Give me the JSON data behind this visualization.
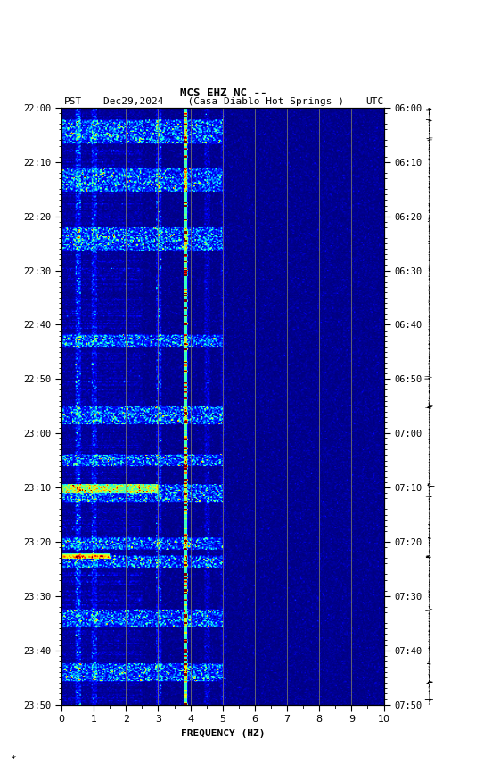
{
  "title_line1": "MCS EHZ NC --",
  "title_line2_left": "PST",
  "title_line2_date": "Dec29,2024",
  "title_line2_loc": "(Casa Diablo Hot Springs )",
  "title_line2_right": "UTC",
  "xlabel": "FREQUENCY (HZ)",
  "freq_min": 0,
  "freq_max": 10,
  "pst_ticks": [
    "22:00",
    "22:10",
    "22:20",
    "22:30",
    "22:40",
    "22:50",
    "23:00",
    "23:10",
    "23:20",
    "23:30",
    "23:40",
    "23:50"
  ],
  "utc_ticks": [
    "06:00",
    "06:10",
    "06:20",
    "06:30",
    "06:40",
    "06:50",
    "07:00",
    "07:10",
    "07:20",
    "07:30",
    "07:40",
    "07:50"
  ],
  "vertical_lines_freq": [
    1,
    2,
    3,
    4,
    5,
    6,
    7,
    8,
    9
  ],
  "dominant_freq": 3.85,
  "background_color": "#ffffff",
  "fig_width": 5.52,
  "fig_height": 8.64,
  "dpi": 100,
  "watermark": "*"
}
